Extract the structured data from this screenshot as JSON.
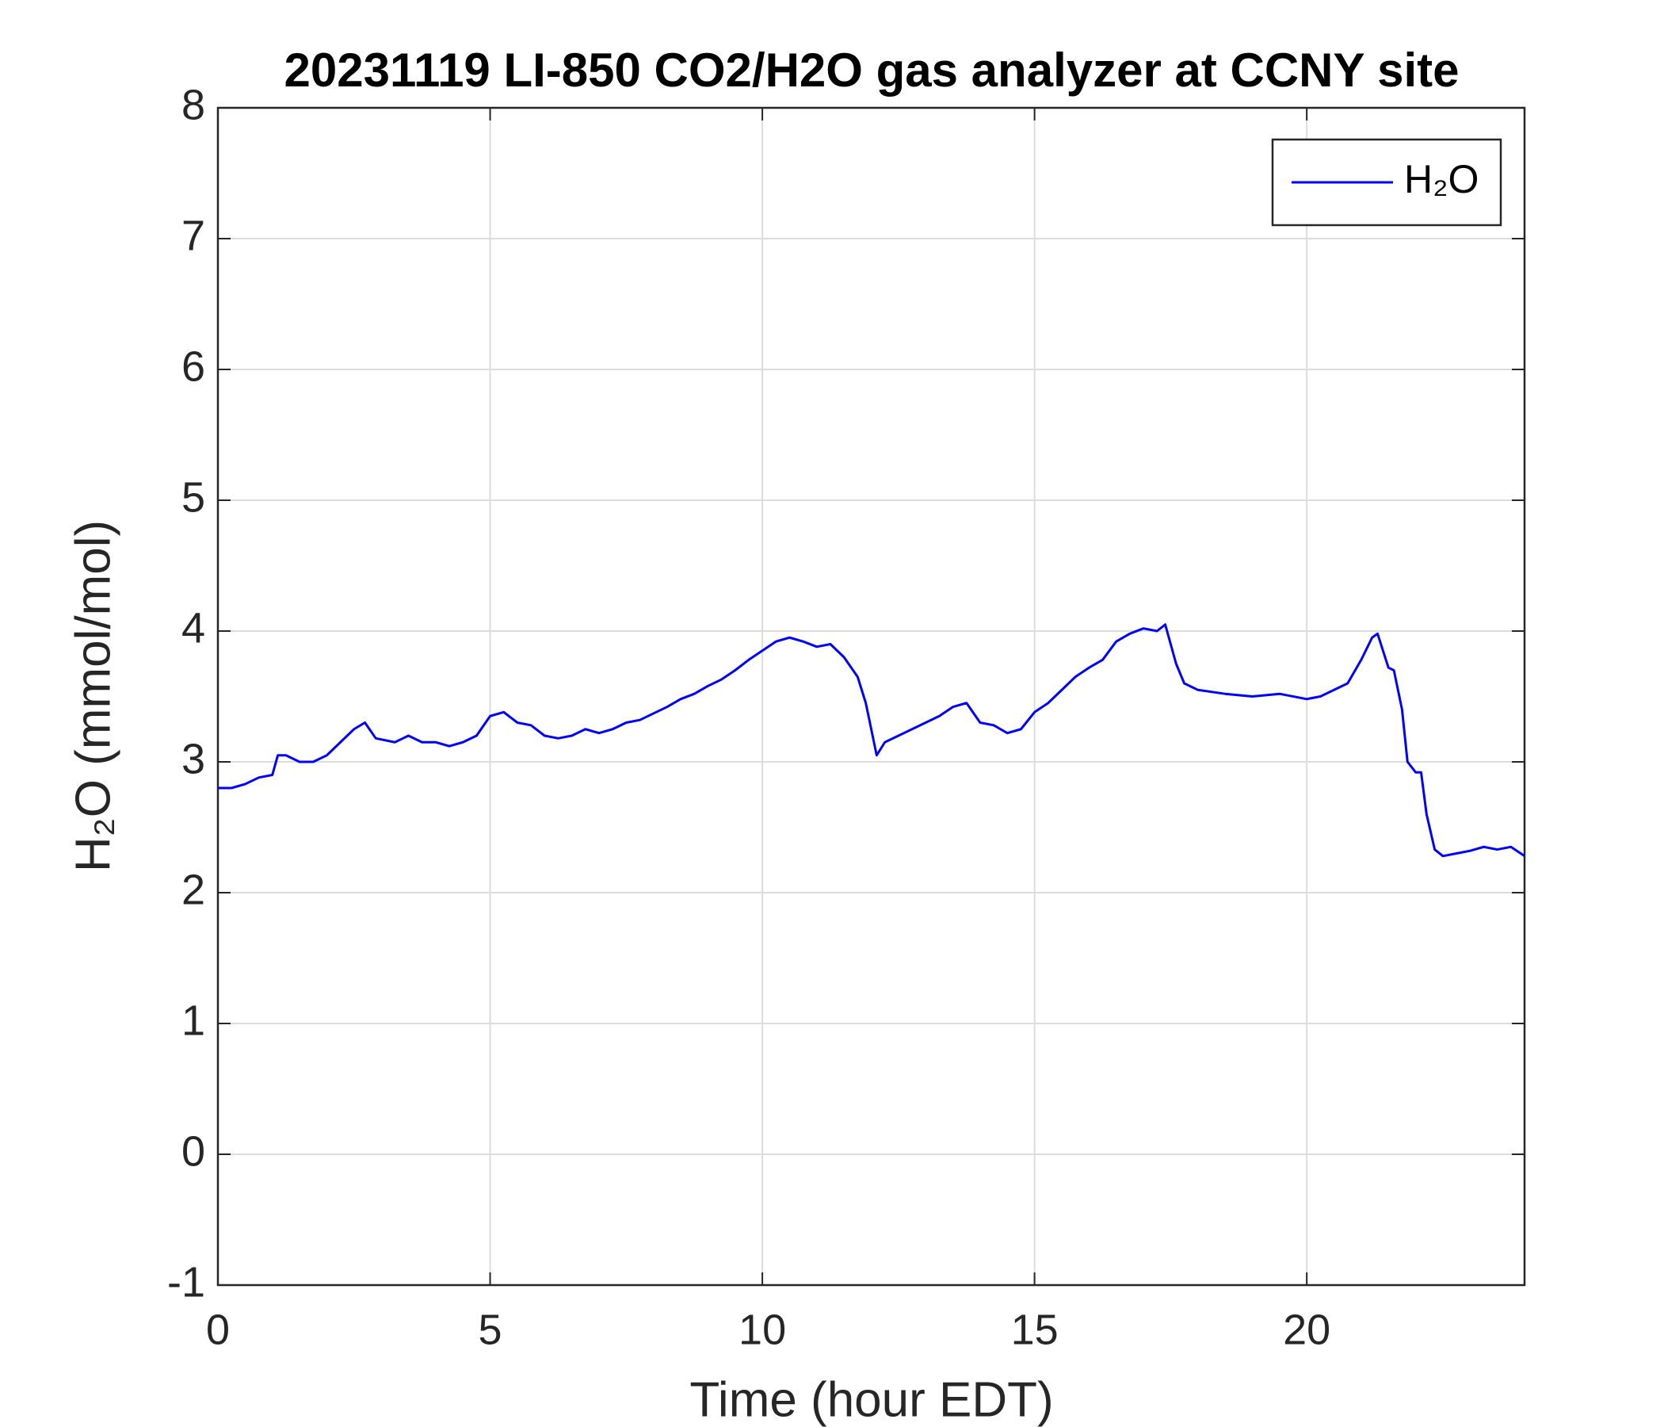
{
  "chart_data": {
    "type": "line",
    "title": "20231119 LI-850 CO2/H2O gas analyzer at CCNY site",
    "x_label": "Time (hour EDT)",
    "y_label": "H₂O (mmol/mol)",
    "x": [
      0,
      0.25,
      0.5,
      0.75,
      1.0,
      1.1,
      1.25,
      1.5,
      1.75,
      2.0,
      2.25,
      2.5,
      2.7,
      2.9,
      3.25,
      3.5,
      3.75,
      4.0,
      4.25,
      4.5,
      4.75,
      5.0,
      5.25,
      5.5,
      5.75,
      6.0,
      6.25,
      6.5,
      6.75,
      7.0,
      7.25,
      7.5,
      7.75,
      8.0,
      8.25,
      8.5,
      8.75,
      9.0,
      9.25,
      9.5,
      9.75,
      10.0,
      10.25,
      10.5,
      10.75,
      11.0,
      11.25,
      11.5,
      11.75,
      11.9,
      12.1,
      12.25,
      12.5,
      12.75,
      13.0,
      13.25,
      13.5,
      13.75,
      14.0,
      14.25,
      14.5,
      14.75,
      15.0,
      15.25,
      15.5,
      15.75,
      16.0,
      16.25,
      16.5,
      16.75,
      17.0,
      17.25,
      17.4,
      17.6,
      17.75,
      18.0,
      18.5,
      19.0,
      19.5,
      20.0,
      20.25,
      20.5,
      20.75,
      21.0,
      21.2,
      21.3,
      21.5,
      21.6,
      21.75,
      21.85,
      22.0,
      22.1,
      22.2,
      22.35,
      22.5,
      22.75,
      23.0,
      23.25,
      23.5,
      23.75,
      24.0
    ],
    "series": [
      {
        "name": "H₂O",
        "color": "#0000ff",
        "values": [
          2.8,
          2.8,
          2.83,
          2.88,
          2.9,
          3.05,
          3.05,
          3.0,
          3.0,
          3.05,
          3.15,
          3.25,
          3.3,
          3.18,
          3.15,
          3.2,
          3.15,
          3.15,
          3.12,
          3.15,
          3.2,
          3.35,
          3.38,
          3.3,
          3.28,
          3.2,
          3.18,
          3.2,
          3.25,
          3.22,
          3.25,
          3.3,
          3.32,
          3.37,
          3.42,
          3.48,
          3.52,
          3.58,
          3.63,
          3.7,
          3.78,
          3.85,
          3.92,
          3.95,
          3.92,
          3.88,
          3.9,
          3.8,
          3.65,
          3.45,
          3.05,
          3.15,
          3.2,
          3.25,
          3.3,
          3.35,
          3.42,
          3.45,
          3.3,
          3.28,
          3.22,
          3.25,
          3.38,
          3.45,
          3.55,
          3.65,
          3.72,
          3.78,
          3.92,
          3.98,
          4.02,
          4.0,
          4.05,
          3.75,
          3.6,
          3.55,
          3.52,
          3.5,
          3.52,
          3.48,
          3.5,
          3.55,
          3.6,
          3.78,
          3.95,
          3.98,
          3.72,
          3.7,
          3.4,
          3.0,
          2.92,
          2.92,
          2.6,
          2.33,
          2.28,
          2.3,
          2.32,
          2.35,
          2.33,
          2.35,
          2.28
        ]
      }
    ],
    "xlim": [
      0,
      24
    ],
    "xticks": [
      0,
      5,
      10,
      15,
      20
    ],
    "ylim": [
      -1,
      8
    ],
    "yticks": [
      -1,
      0,
      1,
      2,
      3,
      4,
      5,
      6,
      7,
      8
    ],
    "grid": true,
    "legend": "northeast"
  }
}
